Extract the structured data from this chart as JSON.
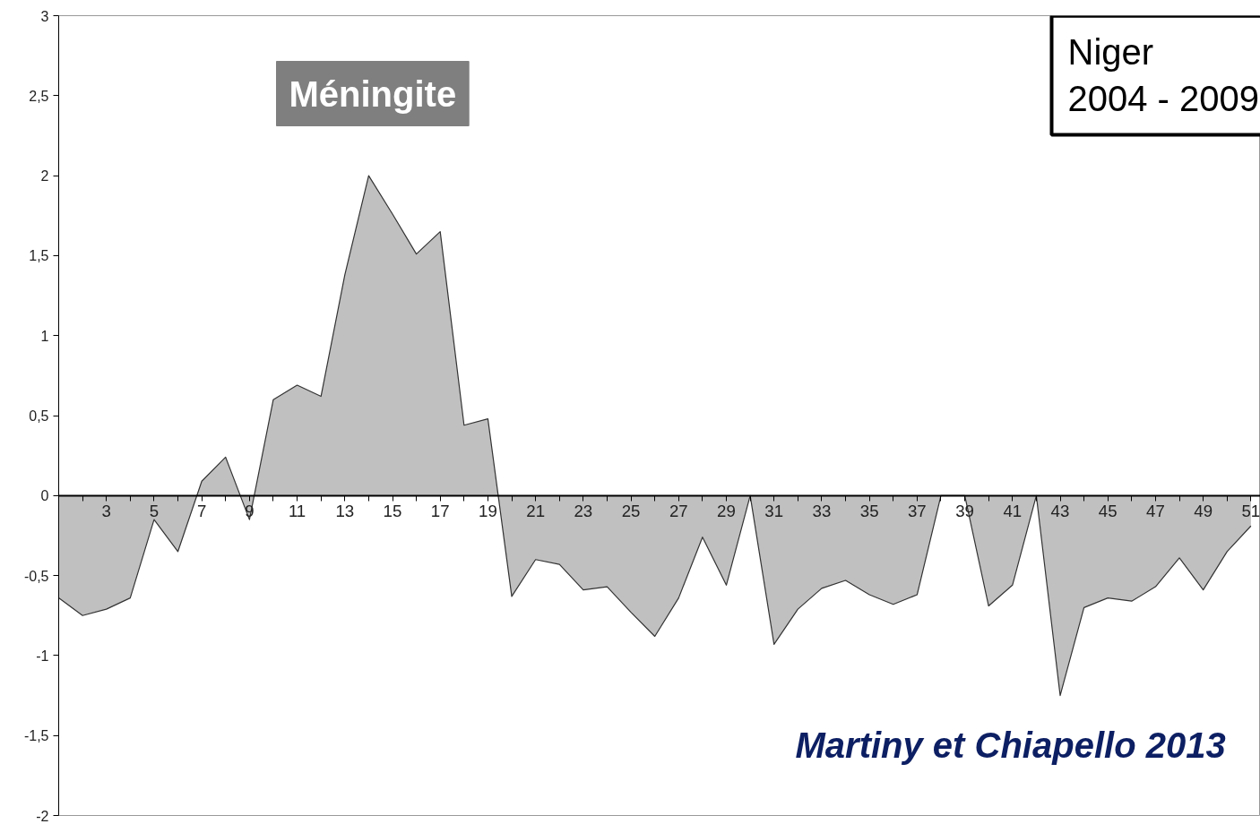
{
  "chart_data": {
    "type": "area",
    "x": [
      1,
      2,
      3,
      4,
      5,
      6,
      7,
      8,
      9,
      10,
      11,
      12,
      13,
      14,
      15,
      16,
      17,
      18,
      19,
      20,
      21,
      22,
      23,
      24,
      25,
      26,
      27,
      28,
      29,
      30,
      31,
      32,
      33,
      34,
      35,
      36,
      37,
      38,
      39,
      40,
      41,
      42,
      43,
      44,
      45,
      46,
      47,
      48,
      49,
      50,
      51
    ],
    "series": [
      {
        "color": "#c0c0c0",
        "values": [
          -0.64,
          -0.75,
          -0.71,
          -0.64,
          -0.15,
          -0.35,
          0.09,
          0.24,
          -0.15,
          0.6,
          0.69,
          0.62,
          1.38,
          2.0,
          1.76,
          1.51,
          1.65,
          0.44,
          0.48,
          -0.63,
          -0.4,
          -0.43,
          -0.59,
          -0.57,
          -0.73,
          -0.88,
          -0.64,
          -0.26,
          -0.56,
          0,
          -0.93,
          -0.71,
          -0.58,
          -0.53,
          -0.62,
          -0.68,
          -0.62,
          0,
          0,
          -0.69,
          -0.56,
          0,
          -1.25,
          -0.7,
          -0.64,
          -0.66,
          -0.57,
          -0.39,
          -0.59,
          -0.35,
          -0.19
        ]
      }
    ],
    "xlim": [
      1,
      51.4
    ],
    "xticks": [
      {
        "value": 1,
        "label": null
      },
      {
        "value": 2,
        "label": null
      },
      3,
      {
        "value": 4,
        "label": null
      },
      5,
      {
        "value": 6,
        "label": null
      },
      7,
      {
        "value": 8,
        "label": null
      },
      9,
      {
        "value": 10,
        "label": null
      },
      11,
      {
        "value": 12,
        "label": null
      },
      13,
      {
        "value": 14,
        "label": null
      },
      15,
      {
        "value": 16,
        "label": null
      },
      17,
      {
        "value": 18,
        "label": null
      },
      19,
      {
        "value": 20,
        "label": null
      },
      21,
      {
        "value": 22,
        "label": null
      },
      23,
      {
        "value": 24,
        "label": null
      },
      25,
      {
        "value": 26,
        "label": null
      },
      27,
      {
        "value": 28,
        "label": null
      },
      29,
      {
        "value": 30,
        "label": null
      },
      31,
      {
        "value": 32,
        "label": null
      },
      33,
      {
        "value": 34,
        "label": null
      },
      35,
      {
        "value": 36,
        "label": null
      },
      37,
      {
        "value": 38,
        "label": null
      },
      39,
      {
        "value": 40,
        "label": null
      },
      41,
      {
        "value": 42,
        "label": null
      },
      43,
      {
        "value": 44,
        "label": null
      },
      45,
      {
        "value": 46,
        "label": null
      },
      47,
      {
        "value": 48,
        "label": null
      },
      49,
      {
        "value": 50,
        "label": null
      },
      51
    ],
    "ylim": [
      -2,
      3
    ],
    "yticks": [
      -2,
      {
        "value": -1.5,
        "label": "-1,5"
      },
      -1,
      {
        "value": -0.5,
        "label": "-0,5"
      },
      0,
      {
        "value": 0.5,
        "label": "0,5"
      },
      1,
      {
        "value": 1.5,
        "label": "1,5"
      },
      2,
      {
        "value": 2.5,
        "label": "2,5"
      },
      3
    ],
    "grid": false,
    "annotations": [
      "Méningite",
      "Niger\n2004 - 2009",
      "Martiny et Chiapello 2013"
    ]
  }
}
